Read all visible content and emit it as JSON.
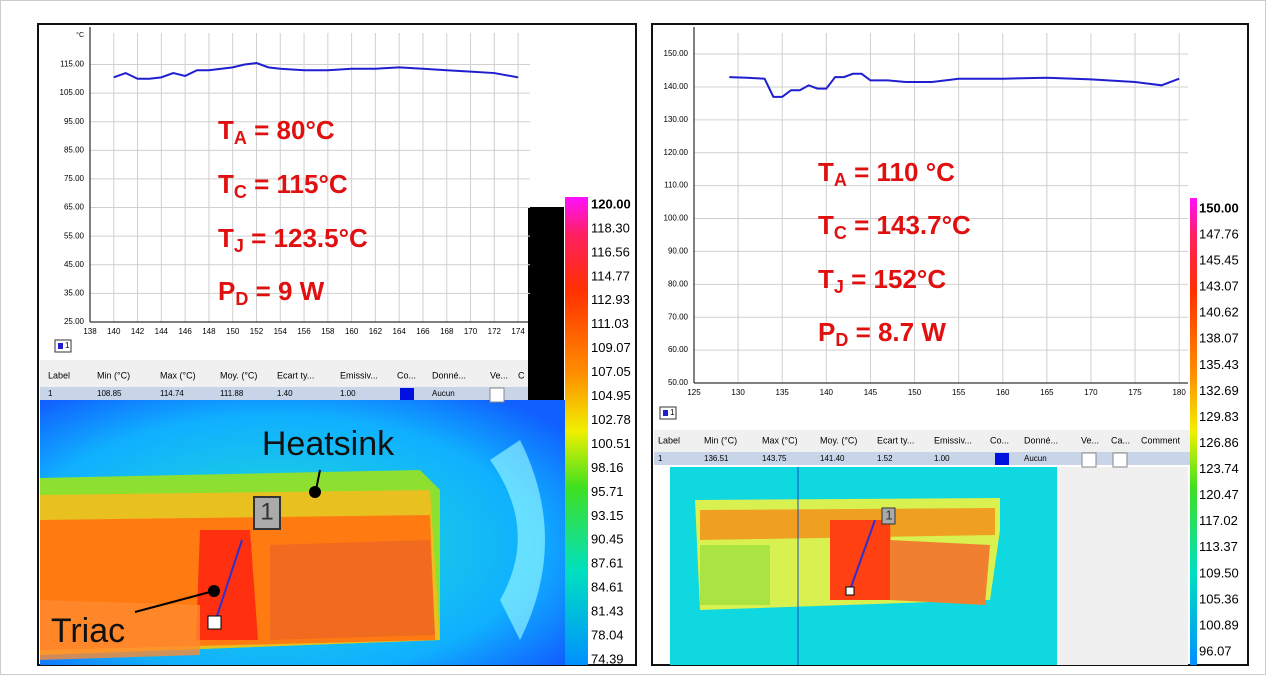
{
  "panels": [
    {
      "chart": {
        "type": "line",
        "y_unit": "°C",
        "color": "#1f1fd0",
        "x": [
          140,
          141,
          142,
          143,
          144,
          145,
          146,
          147,
          148,
          150,
          151,
          152,
          153,
          154,
          156,
          158,
          160,
          162,
          164,
          166,
          168,
          170,
          172,
          174
        ],
        "values": [
          110.5,
          112,
          110,
          110,
          110.5,
          112,
          111,
          113,
          113,
          114,
          115,
          115.5,
          114,
          113.5,
          113,
          113,
          113.5,
          113.5,
          114,
          113.5,
          113,
          112.5,
          112,
          110.5
        ],
        "xlim": [
          138,
          175
        ],
        "ylim": [
          25,
          126
        ],
        "xticks": [
          138,
          140,
          142,
          144,
          146,
          148,
          150,
          152,
          154,
          156,
          158,
          160,
          162,
          164,
          166,
          168,
          170,
          172,
          174
        ],
        "yticks": [
          {
            "value": 25,
            "label": "25.00"
          },
          {
            "value": 35,
            "label": "35.00"
          },
          {
            "value": 45,
            "label": "45.00"
          },
          {
            "value": 55,
            "label": "55.00"
          },
          {
            "value": 65,
            "label": "65.00"
          },
          {
            "value": 75,
            "label": "75.00"
          },
          {
            "value": 85,
            "label": "85.00"
          },
          {
            "value": 95,
            "label": "95.00"
          },
          {
            "value": 105,
            "label": "105.00"
          },
          {
            "value": 115,
            "label": "115.00"
          }
        ],
        "grid": true,
        "legend": "1"
      },
      "annotations": [
        {
          "symbol": "T",
          "sub": "A",
          "text": " = 80°C"
        },
        {
          "symbol": "T",
          "sub": "C",
          "text": " = 115°C"
        },
        {
          "symbol": "T",
          "sub": "J",
          "text": " = 123.5°C"
        },
        {
          "symbol": "P",
          "sub": "D",
          "text": " = 9 W"
        }
      ],
      "table": {
        "headers": [
          "Label",
          "Min (°C)",
          "Max (°C)",
          "Moy. (°C)",
          "Ecart ty...",
          "Emissiv...",
          "Co...",
          "Donné...",
          "Ve...",
          "C"
        ],
        "row": [
          "1",
          "108.85",
          "114.74",
          "111.88",
          "1.40",
          "1.00"
        ],
        "data_source": "Aucun"
      },
      "colorbar": [
        "120.00",
        "118.30",
        "116.56",
        "114.77",
        "112.93",
        "111.03",
        "109.07",
        "107.05",
        "104.95",
        "102.78",
        "100.51",
        "98.16",
        "95.71",
        "93.15",
        "90.45",
        "87.61",
        "84.61",
        "81.43",
        "78.04",
        "74.39"
      ],
      "image_labels": {
        "marker": "1",
        "heatsink": "Heatsink",
        "triac": "Triac"
      }
    },
    {
      "chart": {
        "type": "line",
        "y_unit": "",
        "color": "#1f1fd0",
        "x": [
          129,
          131,
          133,
          134,
          135,
          136,
          137,
          138,
          139,
          140,
          141,
          142,
          143,
          144,
          145,
          147,
          149,
          152,
          155,
          160,
          165,
          170,
          175,
          178,
          180
        ],
        "values": [
          143,
          142.8,
          142.5,
          137,
          137,
          139,
          139,
          140.5,
          139.5,
          139.5,
          143,
          143,
          144,
          144,
          142,
          142,
          141.5,
          141.5,
          142.5,
          142.5,
          142.8,
          142.3,
          141.5,
          140.5,
          142.5
        ],
        "xlim": [
          125,
          181
        ],
        "ylim": [
          50,
          156.4
        ],
        "xticks": [
          125,
          130,
          135,
          140,
          145,
          150,
          155,
          160,
          165,
          170,
          175,
          180
        ],
        "yticks": [
          {
            "value": 50,
            "label": "50.00"
          },
          {
            "value": 60,
            "label": "60.00"
          },
          {
            "value": 70,
            "label": "70.00"
          },
          {
            "value": 80,
            "label": "80.00"
          },
          {
            "value": 90,
            "label": "90.00"
          },
          {
            "value": 100,
            "label": "100.00"
          },
          {
            "value": 110,
            "label": "110.00"
          },
          {
            "value": 120,
            "label": "120.00"
          },
          {
            "value": 130,
            "label": "130.00"
          },
          {
            "value": 140,
            "label": "140.00"
          },
          {
            "value": 150,
            "label": "150.00"
          }
        ],
        "grid": true,
        "legend": "1"
      },
      "annotations": [
        {
          "symbol": "T",
          "sub": "A",
          "text": " = 110 °C"
        },
        {
          "symbol": "T",
          "sub": "C",
          "text": " = 143.7°C"
        },
        {
          "symbol": "T",
          "sub": "J",
          "text": " = 152°C"
        },
        {
          "symbol": "P",
          "sub": "D",
          "text": " = 8.7 W"
        }
      ],
      "table": {
        "headers": [
          "Label",
          "Min (°C)",
          "Max (°C)",
          "Moy. (°C)",
          "Ecart ty...",
          "Emissiv...",
          "Co...",
          "Donné...",
          "Ve...",
          "Ca...",
          "Comment"
        ],
        "row": [
          "1",
          "136.51",
          "143.75",
          "141.40",
          "1.52",
          "1.00"
        ],
        "data_source": "Aucun"
      },
      "colorbar": [
        "150.00",
        "147.76",
        "145.45",
        "143.07",
        "140.62",
        "138.07",
        "135.43",
        "132.69",
        "129.83",
        "126.86",
        "123.74",
        "120.47",
        "117.02",
        "113.37",
        "109.50",
        "105.36",
        "100.89",
        "96.07"
      ],
      "image_labels": {
        "marker": "1"
      }
    }
  ]
}
